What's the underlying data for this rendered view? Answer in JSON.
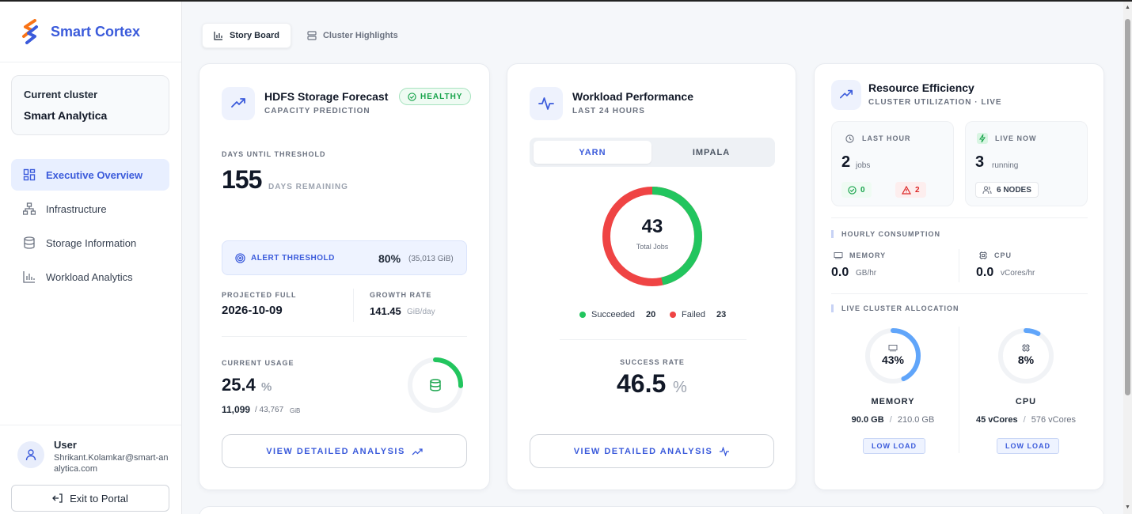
{
  "brand": {
    "name": "Smart Cortex"
  },
  "cluster": {
    "label": "Current cluster",
    "name": "Smart Analytica"
  },
  "nav": [
    {
      "label": "Executive Overview",
      "icon": "grid-icon",
      "active": true
    },
    {
      "label": "Infrastructure",
      "icon": "network-icon"
    },
    {
      "label": "Storage Information",
      "icon": "database-icon"
    },
    {
      "label": "Workload Analytics",
      "icon": "bar-chart-icon"
    }
  ],
  "user": {
    "title": "User",
    "email": "Shrikant.Kolamkar@smart-analytica.com",
    "exit_label": "Exit to Portal"
  },
  "tabs": [
    {
      "label": "Story Board",
      "active": true
    },
    {
      "label": "Cluster Highlights",
      "active": false
    }
  ],
  "hdfs": {
    "title": "HDFS Storage Forecast",
    "subtitle": "CAPACITY PREDICTION",
    "status": "HEALTHY",
    "days_label": "DAYS UNTIL THRESHOLD",
    "days_value": "155",
    "days_unit": "DAYS REMAINING",
    "alert_label": "ALERT THRESHOLD",
    "alert_value": "80%",
    "alert_detail": "(35,013 GiB)",
    "projected_label": "PROJECTED FULL",
    "projected_value": "2026-10-09",
    "growth_label": "GROWTH RATE",
    "growth_value": "141.45",
    "growth_unit": "GiB/day",
    "usage_label": "CURRENT USAGE",
    "usage_value": "25.4",
    "usage_unit": "%",
    "usage_used": "11,099",
    "usage_total": "/ 43,767",
    "usage_size_unit": "GiB",
    "usage_fraction": 0.254,
    "button": "VIEW DETAILED ANALYSIS"
  },
  "workload": {
    "title": "Workload Performance",
    "subtitle": "LAST 24 HOURS",
    "seg_active": "YARN",
    "seg_inactive": "IMPALA",
    "total": "43",
    "total_label": "Total Jobs",
    "succeeded_label": "Succeeded",
    "succeeded": 20,
    "failed_label": "Failed",
    "failed": 23,
    "success_rate_label": "SUCCESS RATE",
    "success_rate": "46.5",
    "success_rate_unit": "%",
    "button": "VIEW DETAILED ANALYSIS",
    "colors": {
      "success": "#22c55e",
      "failed": "#ef4444"
    }
  },
  "resource": {
    "title": "Resource Efficiency",
    "subtitle": "CLUSTER UTILIZATION · LIVE",
    "last_hour_label": "LAST HOUR",
    "last_hour_value": "2",
    "last_hour_unit": "jobs",
    "ok_count": "0",
    "warn_count": "2",
    "live_label": "LIVE NOW",
    "live_value": "3",
    "live_unit": "running",
    "nodes": "6 NODES",
    "hourly_label": "HOURLY CONSUMPTION",
    "memory_label": "MEMORY",
    "memory_value": "0.0",
    "memory_unit": "GB/hr",
    "cpu_label": "CPU",
    "cpu_value": "0.0",
    "cpu_unit": "vCores/hr",
    "allocation_label": "LIVE CLUSTER ALLOCATION",
    "mem_pct": "43%",
    "mem_fraction": 0.43,
    "mem_title": "MEMORY",
    "mem_used": "90.0 GB",
    "mem_sep": "/",
    "mem_total": "210.0 GB",
    "mem_load": "LOW LOAD",
    "cpu_pct": "8%",
    "cpu_fraction": 0.08,
    "cpu_title": "CPU",
    "cpu_used": "45 vCores",
    "cpu_sep": "/",
    "cpu_total": "576 vCores",
    "cpu_load": "LOW LOAD"
  }
}
